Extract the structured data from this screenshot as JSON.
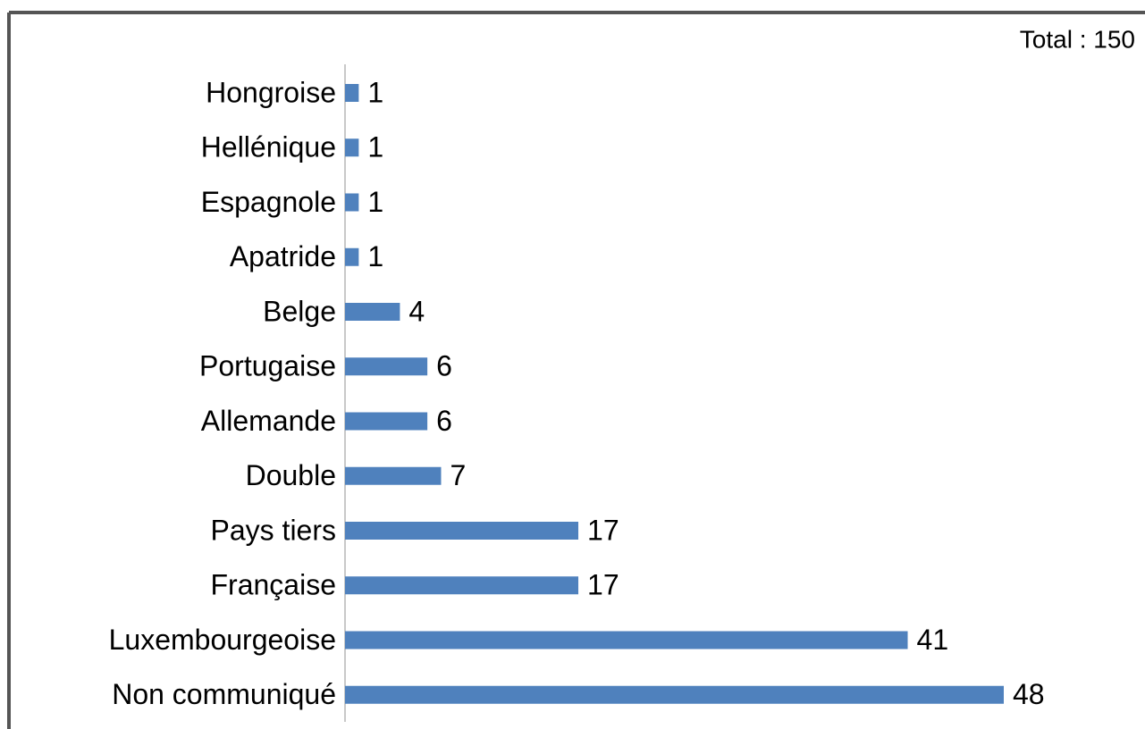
{
  "chart_data": {
    "type": "bar",
    "orientation": "horizontal",
    "annotation": "Total : 150",
    "categories": [
      "Hongroise",
      "Hellénique",
      "Espagnole",
      "Apatride",
      "Belge",
      "Portugaise",
      "Allemande",
      "Double",
      "Pays tiers",
      "Française",
      "Luxembourgeoise",
      "Non communiqué"
    ],
    "values": [
      1,
      1,
      1,
      1,
      4,
      6,
      6,
      7,
      17,
      17,
      41,
      48
    ],
    "color": "#4f81bd"
  }
}
